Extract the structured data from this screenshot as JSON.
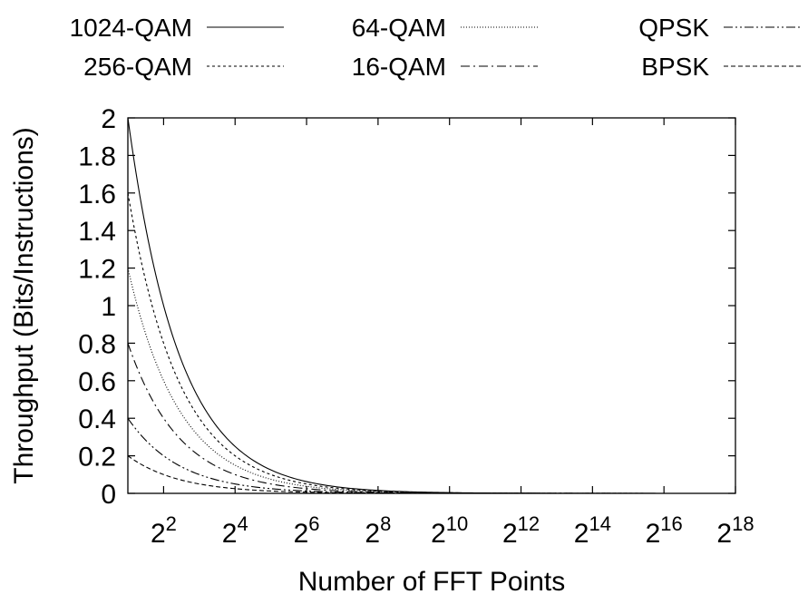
{
  "chart_data": {
    "type": "line",
    "title": "",
    "xlabel": "Number of FFT Points",
    "ylabel": "Throughput (Bits/Instructions)",
    "x_scale": "log2",
    "xlim": [
      2,
      262144
    ],
    "ylim": [
      0,
      2
    ],
    "grid": false,
    "legend_position": "top",
    "y_ticks": [
      "0",
      "0.2",
      "0.4",
      "0.6",
      "0.8",
      "1",
      "1.2",
      "1.4",
      "1.6",
      "1.8",
      "2"
    ],
    "x_ticks": [
      {
        "value": 4,
        "base": "2",
        "exp": "2"
      },
      {
        "value": 16,
        "base": "2",
        "exp": "4"
      },
      {
        "value": 64,
        "base": "2",
        "exp": "6"
      },
      {
        "value": 256,
        "base": "2",
        "exp": "8"
      },
      {
        "value": 1024,
        "base": "2",
        "exp": "10"
      },
      {
        "value": 4096,
        "base": "2",
        "exp": "12"
      },
      {
        "value": 16384,
        "base": "2",
        "exp": "14"
      },
      {
        "value": 65536,
        "base": "2",
        "exp": "16"
      },
      {
        "value": 262144,
        "base": "2",
        "exp": "18"
      }
    ],
    "x": [
      2,
      4,
      8,
      16,
      32,
      64,
      128,
      256,
      512,
      1024,
      2048,
      4096,
      8192,
      16384,
      32768,
      65536,
      131072,
      262144
    ],
    "series": [
      {
        "name": "1024-QAM",
        "dash": "",
        "values": [
          2.0,
          1.0,
          0.667,
          0.5,
          0.4,
          0.333,
          0.286,
          0.25,
          0.222,
          0.2,
          0.182,
          0.167,
          0.154,
          0.143,
          0.133,
          0.125,
          0.118,
          0.111
        ]
      },
      {
        "name": "256-QAM",
        "dash": "3,3",
        "values": [
          1.6,
          0.8,
          0.533,
          0.4,
          0.32,
          0.267,
          0.229,
          0.2,
          0.178,
          0.16,
          0.145,
          0.133,
          0.123,
          0.114,
          0.107,
          0.1,
          0.094,
          0.089
        ]
      },
      {
        "name": "64-QAM",
        "dash": "1,2",
        "values": [
          1.2,
          0.6,
          0.4,
          0.3,
          0.24,
          0.2,
          0.171,
          0.15,
          0.133,
          0.12,
          0.109,
          0.1,
          0.092,
          0.086,
          0.08,
          0.075,
          0.071,
          0.067
        ]
      },
      {
        "name": "16-QAM",
        "dash": "10,4,2,4",
        "values": [
          0.8,
          0.4,
          0.267,
          0.2,
          0.16,
          0.133,
          0.114,
          0.1,
          0.089,
          0.08,
          0.073,
          0.067,
          0.062,
          0.057,
          0.053,
          0.05,
          0.047,
          0.044
        ]
      },
      {
        "name": "QPSK",
        "dash": "10,3,2,3,2,3",
        "values": [
          0.4,
          0.2,
          0.133,
          0.1,
          0.08,
          0.067,
          0.057,
          0.05,
          0.044,
          0.04,
          0.036,
          0.033,
          0.031,
          0.029,
          0.027,
          0.025,
          0.024,
          0.022
        ]
      },
      {
        "name": "BPSK",
        "dash": "5,3",
        "values": [
          0.2,
          0.1,
          0.067,
          0.05,
          0.04,
          0.033,
          0.029,
          0.025,
          0.022,
          0.02,
          0.018,
          0.017,
          0.015,
          0.014,
          0.013,
          0.013,
          0.012,
          0.011
        ]
      }
    ]
  }
}
